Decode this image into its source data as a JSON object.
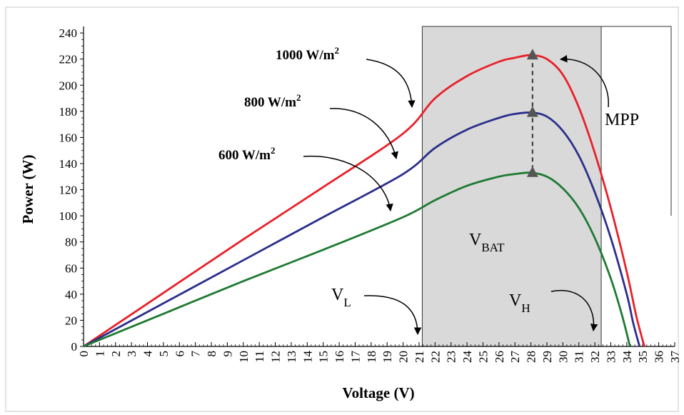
{
  "chart_data": {
    "type": "line",
    "title": "",
    "xlabel": "Voltage (V)",
    "ylabel": "Power (W)",
    "xlim": [
      0,
      37
    ],
    "ylim": [
      0,
      245
    ],
    "x_ticks": [
      0,
      1,
      2,
      3,
      4,
      5,
      6,
      7,
      8,
      9,
      10,
      11,
      12,
      13,
      14,
      15,
      16,
      17,
      18,
      19,
      20,
      21,
      22,
      23,
      24,
      25,
      26,
      27,
      28,
      29,
      30,
      31,
      32,
      33,
      34,
      35,
      36,
      37
    ],
    "y_ticks": [
      0,
      20,
      40,
      60,
      80,
      100,
      120,
      140,
      160,
      180,
      200,
      220,
      240
    ],
    "grid": false,
    "legend": "none",
    "series": [
      {
        "name": "1000 W/m2",
        "color": "#e8202a",
        "x": [
          0,
          5,
          10,
          15,
          20,
          22,
          24,
          26,
          27,
          28,
          29,
          30,
          31,
          32,
          33,
          34,
          34.6,
          35.1
        ],
        "y": [
          0,
          41,
          82,
          122,
          163,
          190,
          207,
          218,
          221,
          223,
          220,
          208,
          183,
          148,
          106,
          57,
          23,
          0
        ]
      },
      {
        "name": "800 W/m2",
        "color": "#2b2f8a",
        "x": [
          0,
          5,
          10,
          15,
          20,
          22,
          24,
          26,
          27,
          28,
          29,
          30,
          31,
          32,
          33,
          34,
          34.4,
          34.8
        ],
        "y": [
          0,
          33,
          66,
          99,
          132,
          152,
          166,
          175,
          178,
          179,
          176,
          165,
          146,
          118,
          83,
          40,
          18,
          0
        ]
      },
      {
        "name": "600 W/m2",
        "color": "#1e7a32",
        "x": [
          0,
          5,
          10,
          15,
          20,
          22,
          24,
          26,
          27,
          28,
          29,
          30,
          31,
          32,
          33,
          33.7,
          34.2
        ],
        "y": [
          0,
          25,
          50,
          74,
          99,
          112,
          123,
          130,
          132,
          133,
          130,
          121,
          106,
          83,
          52,
          24,
          0
        ]
      }
    ],
    "mpp": {
      "label": "MPP",
      "points": [
        {
          "x": 28.1,
          "y": 223
        },
        {
          "x": 28.1,
          "y": 179
        },
        {
          "x": 28.1,
          "y": 133
        }
      ]
    },
    "shaded_region": {
      "x_from": 21.2,
      "x_to": 32.4,
      "color": "#d9d9d9"
    },
    "annotations": {
      "irr_1000": {
        "base": "1000 W/m",
        "sup": "2"
      },
      "irr_800": {
        "base": "800 W/m",
        "sup": "2"
      },
      "irr_600": {
        "base": "600 W/m",
        "sup": "2"
      },
      "vbat": {
        "base": "V",
        "sub": "BAT"
      },
      "vl": {
        "base": "V",
        "sub": "L"
      },
      "vh": {
        "base": "V",
        "sub": "H"
      }
    }
  }
}
